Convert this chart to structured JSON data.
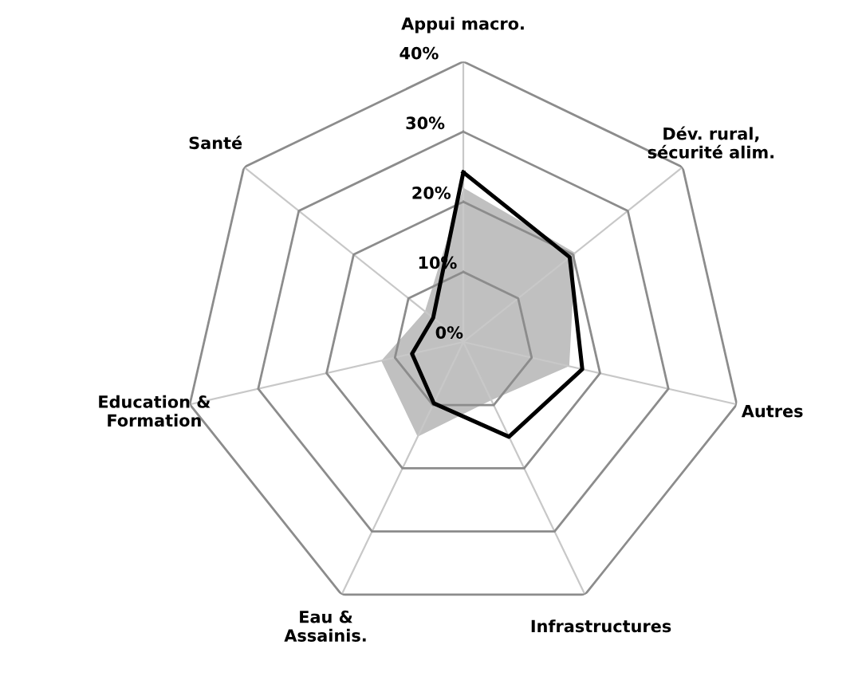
{
  "chart_data": {
    "type": "radar",
    "categories": [
      "Appui macro.",
      "Dév. rural,\nsécurité alim.",
      "Autres",
      "Infrastructures",
      "Eau &\nAssainis.",
      "Education &\nFormation",
      "Santé"
    ],
    "ylim": [
      0,
      40
    ],
    "yticks": [
      {
        "value": 0,
        "label": "0%"
      },
      {
        "value": 10,
        "label": "10%"
      },
      {
        "value": 20,
        "label": "20%"
      },
      {
        "value": 30,
        "label": "30%"
      },
      {
        "value": 40,
        "label": "40%"
      }
    ],
    "series": [
      {
        "type": "area",
        "color": "#c0c0c0",
        "values": [
          22,
          20.4,
          15.5,
          9.2,
          15,
          12,
          7
        ]
      },
      {
        "color": "#000000",
        "values": [
          24.2,
          19.4,
          17.4,
          15,
          9.7,
          7.5,
          5.5
        ]
      }
    ]
  }
}
